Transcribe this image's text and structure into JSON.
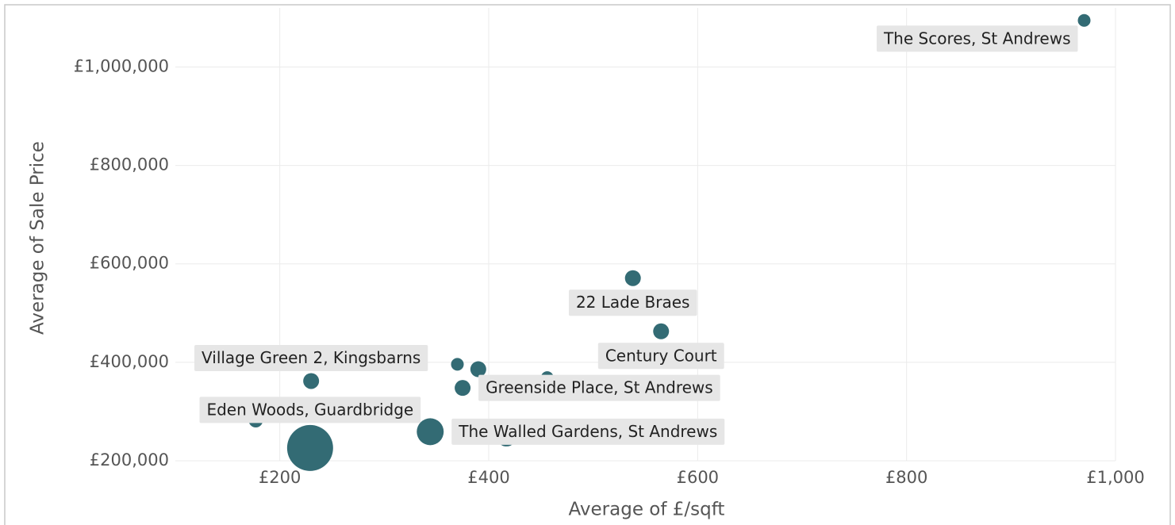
{
  "chart_data": {
    "type": "scatter",
    "x_label": "Average of £/sqft",
    "y_label": "Average of Sale Price",
    "color": "#336b74",
    "grid": true,
    "xlim": [
      100,
      1000
    ],
    "ylim": [
      200000,
      1120000
    ],
    "xticks": [
      {
        "value": 200,
        "label": "£200"
      },
      {
        "value": 400,
        "label": "£400"
      },
      {
        "value": 600,
        "label": "£600"
      },
      {
        "value": 800,
        "label": "£800"
      },
      {
        "value": 1000,
        "label": "£1,000"
      }
    ],
    "yticks": [
      {
        "value": 200000,
        "label": "£200,000"
      },
      {
        "value": 400000,
        "label": "£400,000"
      },
      {
        "value": 600000,
        "label": "£600,000"
      },
      {
        "value": 800000,
        "label": "£800,000"
      },
      {
        "value": 1000000,
        "label": "£1,000,000"
      }
    ],
    "labels": [
      "The Scores, St Andrews",
      "22 Lade Braes",
      "Century Court",
      null,
      null,
      null,
      "Greenside Place, St Andrews",
      "Village Green 2, Kingsbarns",
      null,
      "Eden Woods, Guardbridge",
      "The Walled Gardens, St Andrews",
      null
    ],
    "x": [
      970,
      538,
      565,
      456,
      390,
      370,
      375,
      230,
      177,
      229,
      344,
      417
    ],
    "y": [
      1094600,
      571000,
      463000,
      369000,
      386000,
      396000,
      348000,
      362000,
      282000,
      226000,
      259000,
      250000
    ],
    "sizes": [
      16,
      25,
      25,
      16,
      25,
      16,
      25,
      25,
      20,
      210,
      72,
      42
    ]
  }
}
